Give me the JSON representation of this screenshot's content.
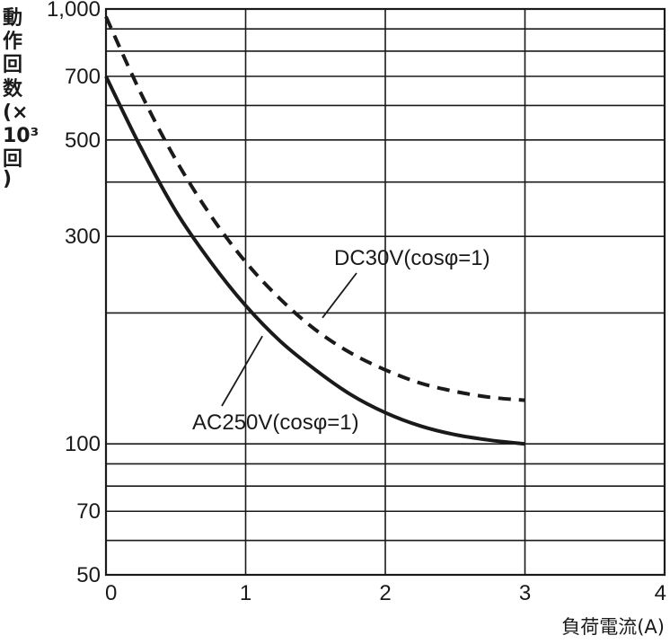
{
  "chart_data": {
    "type": "line",
    "title": "",
    "xlabel": "負荷電流(A)",
    "ylabel": "動作回数(×10³回)",
    "ylabel_chars": [
      "動",
      "作",
      "回",
      "数",
      "(×",
      "10³",
      "回",
      ")"
    ],
    "xlim": [
      0,
      4
    ],
    "ylim": [
      50,
      1000
    ],
    "yscale": "log",
    "x_ticks": [
      0,
      1,
      2,
      3,
      4
    ],
    "x_tick_labels": [
      "0",
      "1",
      "2",
      "3",
      "4"
    ],
    "y_ticks": [
      50,
      70,
      100,
      300,
      500,
      700,
      1000
    ],
    "y_tick_labels": [
      "50",
      "70",
      "100",
      "300",
      "500",
      "700",
      "1,000"
    ],
    "y_gridlines": [
      50,
      60,
      70,
      80,
      90,
      100,
      200,
      300,
      400,
      500,
      600,
      700,
      800,
      900,
      1000
    ],
    "grid": true,
    "series": [
      {
        "name": "DC30V(cosφ=1)",
        "style": "dashed",
        "color": "#1a1a1a",
        "x": [
          0,
          0.25,
          0.5,
          0.75,
          1.0,
          1.25,
          1.5,
          1.75,
          2.0,
          2.25,
          2.5,
          2.75,
          3.0
        ],
        "y": [
          960,
          640,
          450,
          335,
          262,
          215,
          183,
          162,
          148,
          138,
          132,
          128,
          126
        ]
      },
      {
        "name": "AC250V(cosφ=1)",
        "style": "solid",
        "color": "#1a1a1a",
        "x": [
          0,
          0.25,
          0.5,
          0.75,
          1.0,
          1.25,
          1.5,
          1.75,
          2.0,
          2.25,
          2.5,
          2.75,
          3.0
        ],
        "y": [
          700,
          480,
          343,
          262,
          208,
          172,
          148,
          130,
          118,
          110,
          105,
          102,
          100
        ]
      }
    ],
    "annotations": [
      {
        "text": "DC30V(cosφ=1)",
        "series": 0,
        "point": [
          1.55,
          195
        ]
      },
      {
        "text": "AC250V(cosφ=1)",
        "series": 1,
        "point": [
          1.12,
          177
        ]
      }
    ]
  }
}
